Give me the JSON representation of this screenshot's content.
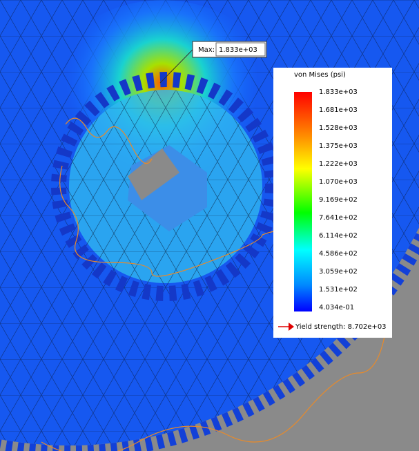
{
  "max_callout": {
    "label": "Max:",
    "value": "1.833e+03"
  },
  "legend": {
    "title": "von Mises (psi)",
    "ticks": [
      "1.833e+03",
      "1.681e+03",
      "1.528e+03",
      "1.375e+03",
      "1.222e+03",
      "1.070e+03",
      "9.169e+02",
      "7.641e+02",
      "6.114e+02",
      "4.586e+02",
      "3.059e+02",
      "1.531e+02",
      "4.034e-01"
    ],
    "yield_strength": "Yield strength: 8.702e+03"
  }
}
